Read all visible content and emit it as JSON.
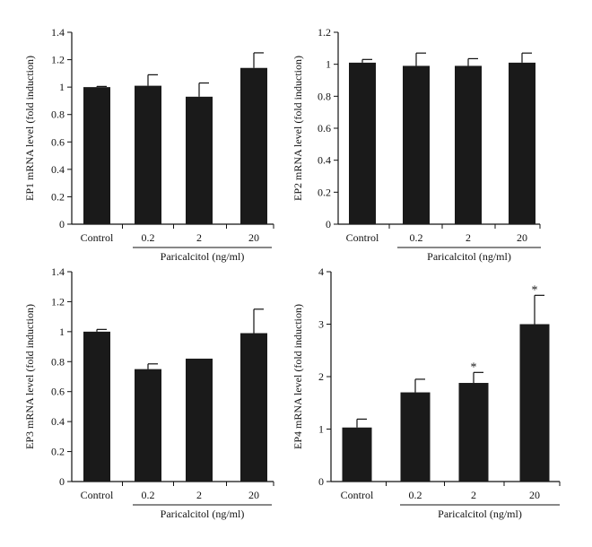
{
  "chart_data": [
    {
      "type": "bar",
      "panel": "EP1",
      "categories": [
        "Control",
        "0.2",
        "2",
        "20"
      ],
      "values": [
        1.0,
        1.01,
        0.93,
        1.14
      ],
      "errors": [
        0.005,
        0.08,
        0.1,
        0.11
      ],
      "significance": [
        "",
        "",
        "",
        ""
      ],
      "ylabel": "EP1 mRNA level (fold induction)",
      "xlabel": "Paricalcitol (ng/ml)",
      "ylim": [
        0,
        1.4
      ],
      "yticks": [
        0,
        0.2,
        0.4,
        0.6,
        0.8,
        1,
        1.2,
        1.4
      ],
      "ytick_labels": [
        "0",
        "0.2",
        "0.4",
        "0.6",
        "0.8",
        "1",
        "1.2",
        "1.4"
      ],
      "bar_color": "#1a1a1a"
    },
    {
      "type": "bar",
      "panel": "EP2",
      "categories": [
        "Control",
        "0.2",
        "2",
        "20"
      ],
      "values": [
        1.01,
        0.99,
        0.99,
        1.01
      ],
      "errors": [
        0.02,
        0.08,
        0.045,
        0.06
      ],
      "significance": [
        "",
        "",
        "",
        ""
      ],
      "ylabel": "EP2 mRNA level (fold induction)",
      "xlabel": "Paricalcitol (ng/ml)",
      "ylim": [
        0,
        1.2
      ],
      "yticks": [
        0,
        0.2,
        0.4,
        0.6,
        0.8,
        1,
        1.2
      ],
      "ytick_labels": [
        "0",
        "0.2",
        "0.4",
        "0.6",
        "0.8",
        "1",
        "1.2"
      ],
      "bar_color": "#1a1a1a"
    },
    {
      "type": "bar",
      "panel": "EP3",
      "categories": [
        "Control",
        "0.2",
        "2",
        "20"
      ],
      "values": [
        1.0,
        0.75,
        0.82,
        0.99
      ],
      "errors": [
        0.015,
        0.035,
        0.0,
        0.16
      ],
      "significance": [
        "",
        "",
        "",
        ""
      ],
      "ylabel": "EP3 mRNA level (fold induction)",
      "xlabel": "Paricalcitol (ng/ml)",
      "ylim": [
        0,
        1.4
      ],
      "yticks": [
        0,
        0.2,
        0.4,
        0.6,
        0.8,
        1,
        1.2,
        1.4
      ],
      "ytick_labels": [
        "0",
        "0.2",
        "0.4",
        "0.6",
        "0.8",
        "1",
        "1.2",
        "1.4"
      ],
      "bar_color": "#1a1a1a"
    },
    {
      "type": "bar",
      "panel": "EP4",
      "categories": [
        "Control",
        "0.2",
        "2",
        "20"
      ],
      "values": [
        1.03,
        1.7,
        1.88,
        3.0
      ],
      "errors": [
        0.16,
        0.25,
        0.2,
        0.55
      ],
      "significance": [
        "",
        "",
        "*",
        "*"
      ],
      "ylabel": "EP4 mRNA level (fold induction)",
      "xlabel": "Paricalcitol (ng/ml)",
      "ylim": [
        0,
        4
      ],
      "yticks": [
        0,
        1,
        2,
        3,
        4
      ],
      "ytick_labels": [
        "0",
        "1",
        "2",
        "3",
        "4"
      ],
      "bar_color": "#1a1a1a"
    }
  ]
}
